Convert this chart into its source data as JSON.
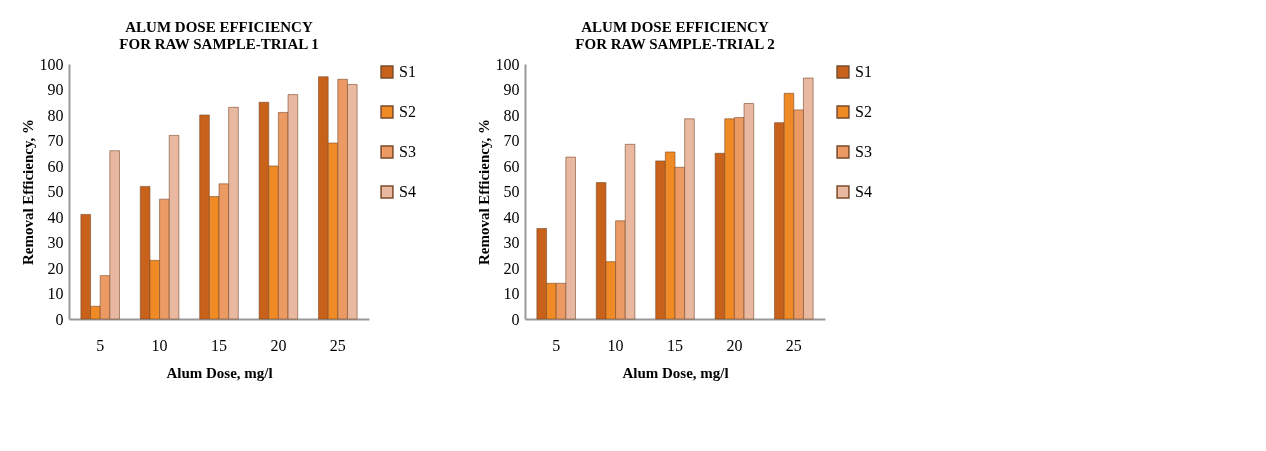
{
  "chart_data": [
    {
      "type": "bar",
      "title": "ALUM DOSE EFFICIENCY\nFOR RAW SAMPLE-TRIAL 1",
      "xlabel": "Alum Dose, mg/l",
      "ylabel": "Removal Efficiency, %",
      "categories": [
        "5",
        "10",
        "15",
        "20",
        "25"
      ],
      "series": [
        {
          "name": "S1",
          "color": "#c8621a",
          "values": [
            41,
            52,
            80,
            85,
            95
          ]
        },
        {
          "name": "S2",
          "color": "#f08a24",
          "values": [
            5,
            23,
            48,
            60,
            69
          ]
        },
        {
          "name": "S3",
          "color": "#eb9a64",
          "values": [
            17,
            47,
            53,
            81,
            94
          ]
        },
        {
          "name": "S4",
          "color": "#e8b8a0",
          "values": [
            66,
            72,
            83,
            88,
            92
          ]
        }
      ],
      "ylim": [
        0,
        100
      ],
      "yticks": [
        0,
        10,
        20,
        30,
        40,
        50,
        60,
        70,
        80,
        90,
        100
      ],
      "grid": false,
      "legend": "right"
    },
    {
      "type": "bar",
      "title": "ALUM DOSE EFFICIENCY\nFOR RAW SAMPLE-TRIAL 2",
      "xlabel": "Alum Dose, mg/l",
      "ylabel": "Removal Efficiency, %",
      "categories": [
        "5",
        "10",
        "15",
        "20",
        "25"
      ],
      "series": [
        {
          "name": "S1",
          "color": "#c8621a",
          "values": [
            35.5,
            53.5,
            62,
            65,
            77
          ]
        },
        {
          "name": "S2",
          "color": "#f08a24",
          "values": [
            14,
            22.5,
            65.5,
            78.5,
            88.5
          ]
        },
        {
          "name": "S3",
          "color": "#eb9a64",
          "values": [
            14,
            38.5,
            59.5,
            79,
            82
          ]
        },
        {
          "name": "S4",
          "color": "#e8b8a0",
          "values": [
            63.5,
            68.5,
            78.5,
            84.5,
            94.5
          ]
        }
      ],
      "ylim": [
        0,
        100
      ],
      "yticks": [
        0,
        10,
        20,
        30,
        40,
        50,
        60,
        70,
        80,
        90,
        100
      ],
      "grid": false,
      "legend": "right"
    }
  ]
}
